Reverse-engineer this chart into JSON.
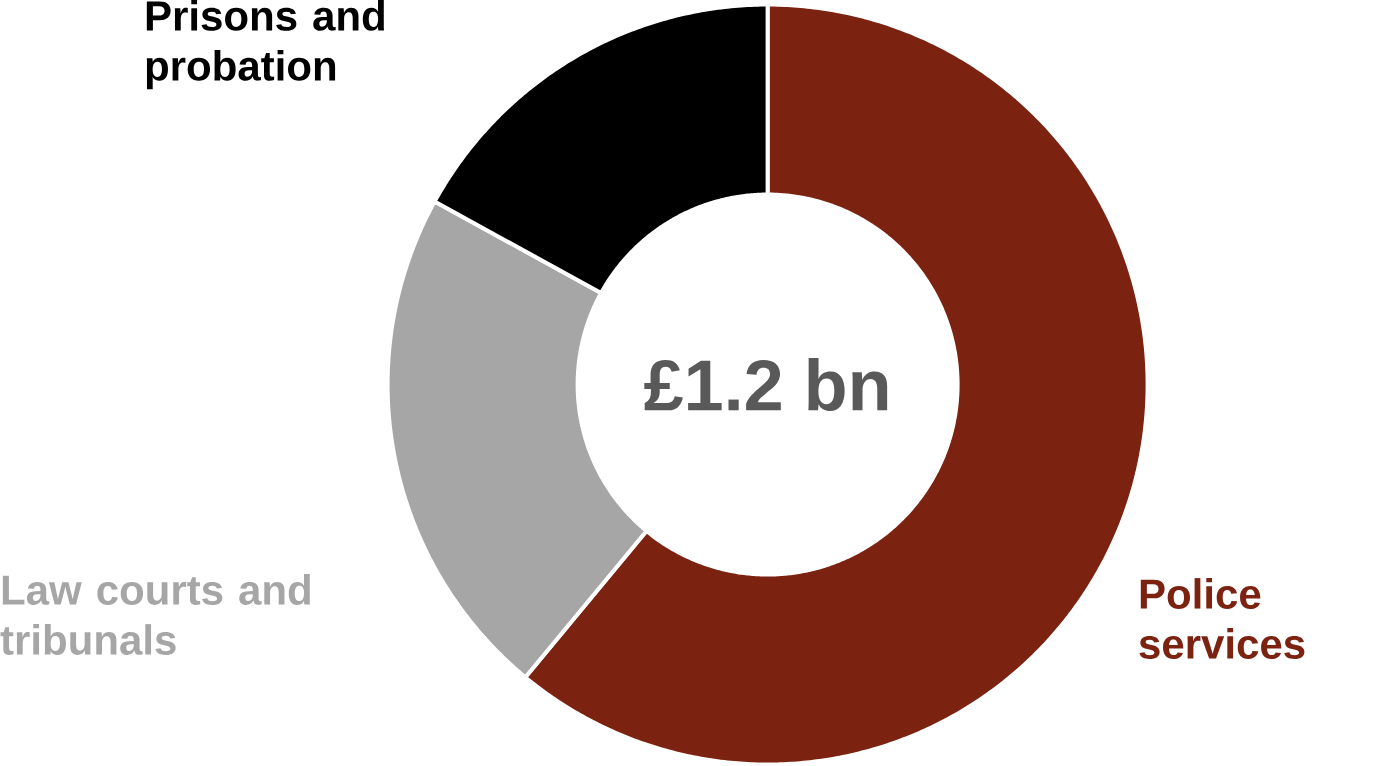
{
  "chart_data": {
    "type": "donut",
    "categories": [
      "Police services",
      "Law courts and tribunals",
      "Prisons and probation"
    ],
    "values": [
      61,
      22,
      17
    ],
    "colors": [
      "#7b2210",
      "#a6a6a6",
      "#000000"
    ],
    "annotations": [
      "£1.2 bn"
    ]
  }
}
